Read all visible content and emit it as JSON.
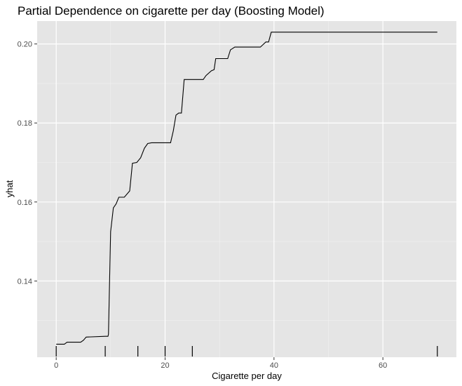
{
  "chart_data": {
    "type": "line",
    "title": "Partial Dependence on cigarette per day (Boosting Model)",
    "xlabel": "Cigarette per day",
    "ylabel": "yhat",
    "xlim": [
      -3.5,
      73.5
    ],
    "ylim": [
      0.1207,
      0.2058
    ],
    "x_ticks": [
      0,
      20,
      40,
      60
    ],
    "y_ticks": [
      0.14,
      0.16,
      0.18,
      0.2
    ],
    "x_tick_labels": [
      "0",
      "20",
      "40",
      "60"
    ],
    "y_tick_labels": [
      "0.14",
      "0.16",
      "0.18",
      "0.20"
    ],
    "grid": true,
    "background": "#e5e5e5",
    "line_color": "#000000",
    "series": [
      {
        "x": [
          0,
          1.5,
          2,
          4.5,
          5,
          5.5,
          9,
          9.5,
          9.6,
          10,
          10.5,
          11,
          11.5,
          12.5,
          13.5,
          14,
          14.8,
          15.5,
          16.2,
          16.8,
          17.5,
          18,
          21,
          21.5,
          22,
          22.5,
          23,
          23.5,
          24,
          27,
          27.5,
          28.5,
          29,
          29.3,
          31.5,
          32,
          32.8,
          37,
          37.5,
          38.5,
          39,
          39.5,
          70
        ],
        "y": [
          0.124,
          0.124,
          0.1245,
          0.1245,
          0.125,
          0.1258,
          0.126,
          0.126,
          0.1265,
          0.1525,
          0.1585,
          0.1595,
          0.1612,
          0.1612,
          0.1628,
          0.1698,
          0.17,
          0.1712,
          0.1736,
          0.1748,
          0.175,
          0.175,
          0.175,
          0.178,
          0.182,
          0.1825,
          0.1825,
          0.191,
          0.191,
          0.191,
          0.192,
          0.1932,
          0.1935,
          0.1963,
          0.1963,
          0.1985,
          0.1992,
          0.1992,
          0.1992,
          0.2005,
          0.2005,
          0.203,
          0.203
        ]
      }
    ],
    "rug": [
      0,
      9,
      15,
      20,
      25,
      70
    ]
  }
}
